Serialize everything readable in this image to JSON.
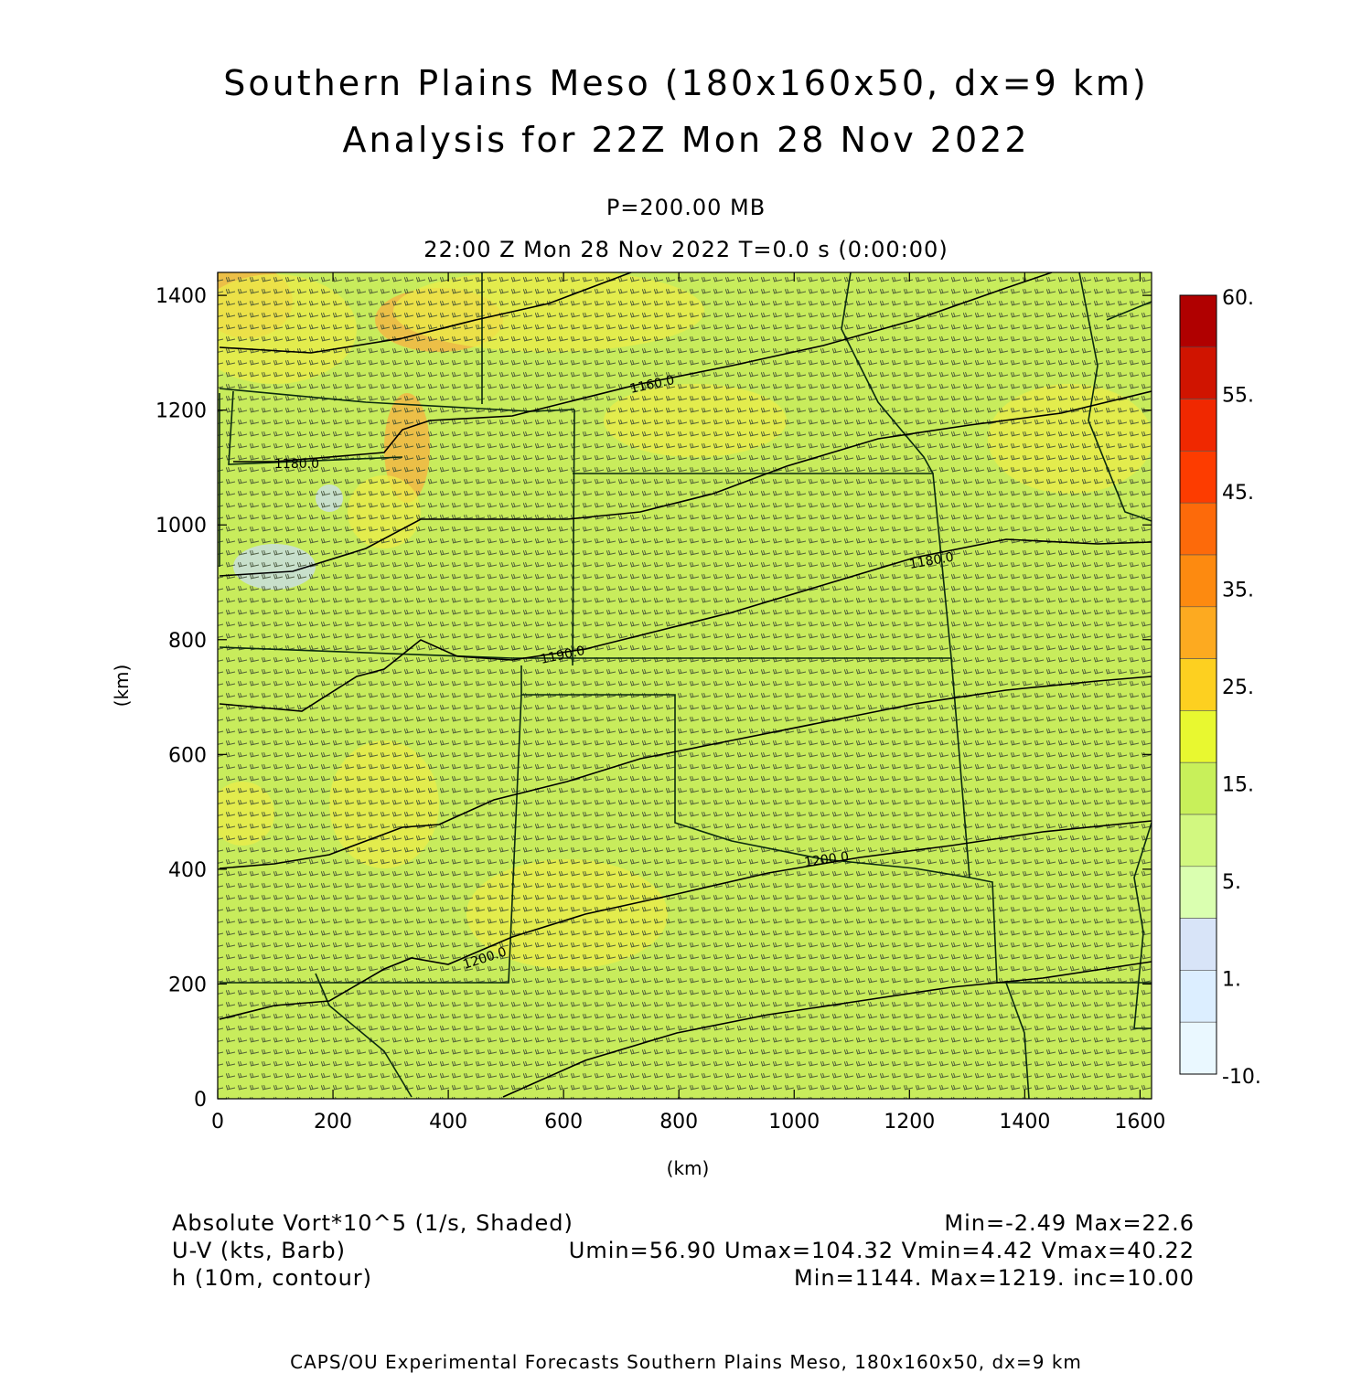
{
  "title": {
    "line1": "Southern Plains Meso (180x160x50, dx=9 km)",
    "line2": "Analysis for 22Z Mon 28 Nov 2022"
  },
  "subtitle": {
    "level": "P=200.00 MB",
    "time": "22:00 Z Mon 28 Nov 2022    T=0.0 s (0:00:00)"
  },
  "axes": {
    "xlabel": "(km)",
    "ylabel": "(km)",
    "x_range": [
      0,
      1620
    ],
    "y_range": [
      0,
      1440
    ],
    "x_ticks": [
      "0",
      "200",
      "400",
      "600",
      "800",
      "1000",
      "1200",
      "1400",
      "1600"
    ],
    "y_ticks": [
      "0",
      "200",
      "400",
      "600",
      "800",
      "1000",
      "1200",
      "1400"
    ]
  },
  "colorbar": {
    "labels": [
      "60.",
      "55.",
      "45.",
      "35.",
      "25.",
      "15.",
      "5.",
      "1.",
      "-10."
    ],
    "colors": [
      "#b00000",
      "#d01400",
      "#f02800",
      "#fd3c00",
      "#fd6a0a",
      "#fd8a10",
      "#fdaa20",
      "#fdd020",
      "#e8f830",
      "#c8f05a",
      "#d2f880",
      "#daffb0",
      "#d8e4f8",
      "#dceeff",
      "#eaf8ff"
    ]
  },
  "field_colors": {
    "background": "#c8ec5c",
    "warm": "#ecec48",
    "hot": "#f8b040",
    "cool": "#c8dcf0"
  },
  "contour_labels": [
    "1160.0",
    "1180.0",
    "1180.0",
    "1190.0",
    "1200.0",
    "1200.0"
  ],
  "legend": {
    "shaded_label": "Absolute Vort*10^5 (1/s, Shaded)",
    "shaded_stats": "Min=-2.49 Max=22.6",
    "barb_label": "U-V (kts, Barb)",
    "barb_stats": "Umin=56.90 Umax=104.32 Vmin=4.42 Vmax=40.22",
    "contour_label": "h (10m, contour)",
    "contour_stats": "Min=1144. Max=1219. inc=10.00"
  },
  "footer": "CAPS/OU Experimental Forecasts  Southern Plains Meso, 180x160x50, dx=9 km"
}
